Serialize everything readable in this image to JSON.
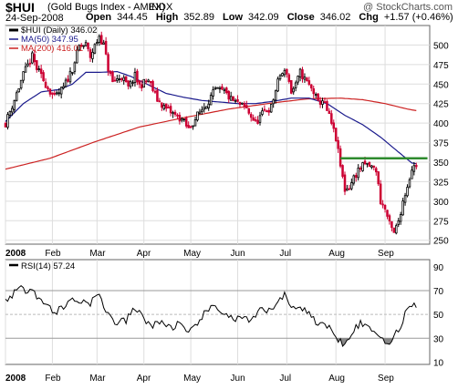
{
  "header": {
    "symbol": "$HUI",
    "name": "(Gold Bugs Index - AMEX)",
    "exchange": "INDX",
    "credit": "@ StockCharts.com",
    "date": "24-Sep-2008",
    "open_label": "Open",
    "open": "344.45",
    "high_label": "High",
    "high": "352.89",
    "low_label": "Low",
    "low": "342.09",
    "close_label": "Close",
    "close": "346.02",
    "chg_label": "Chg",
    "chg": "+1.57 (+0.46%)",
    "chg_color": "#000000"
  },
  "colors": {
    "up": "#000000",
    "down": "#cc0033",
    "ma50": "#1a1a8c",
    "ma200": "#cc2222",
    "resistance": "#2e8b2e",
    "rsi_line": "#000000",
    "rsi_fill_low": "#888888",
    "grid": "#dddddd",
    "frame": "#666666"
  },
  "chart_data": [
    {
      "type": "candlestick",
      "title": "$HUI (Gold Bugs Index - AMEX) INDX",
      "legend": [
        {
          "label": "$HUI (Daily) 346.02",
          "color": "#000000"
        },
        {
          "label": "MA(50) 347.95",
          "color": "#1a1a8c"
        },
        {
          "label": "MA(200) 416.01",
          "color": "#cc2222"
        }
      ],
      "legend_position": "top-left",
      "y_axis_side": "right",
      "ylim": [
        245,
        525
      ],
      "y_ticks": [
        250,
        275,
        300,
        325,
        350,
        375,
        400,
        425,
        450,
        475,
        500
      ],
      "x_tick_labels": [
        "2008",
        "Feb",
        "Mar",
        "Apr",
        "May",
        "Jun",
        "Jul",
        "Aug",
        "Sep"
      ],
      "x_tick_days": [
        0,
        21,
        41,
        62,
        83,
        104,
        126,
        148,
        170
      ],
      "total_days": 190,
      "price_anchors": [
        [
          0,
          400
        ],
        [
          4,
          430
        ],
        [
          8,
          462
        ],
        [
          12,
          485
        ],
        [
          14,
          470
        ],
        [
          18,
          450
        ],
        [
          22,
          432
        ],
        [
          26,
          445
        ],
        [
          30,
          470
        ],
        [
          33,
          498
        ],
        [
          36,
          500
        ],
        [
          38,
          485
        ],
        [
          42,
          512
        ],
        [
          44,
          500
        ],
        [
          46,
          470
        ],
        [
          48,
          452
        ],
        [
          52,
          460
        ],
        [
          55,
          445
        ],
        [
          58,
          460
        ],
        [
          60,
          448
        ],
        [
          64,
          455
        ],
        [
          68,
          430
        ],
        [
          72,
          418
        ],
        [
          76,
          410
        ],
        [
          79,
          405
        ],
        [
          82,
          392
        ],
        [
          86,
          410
        ],
        [
          90,
          425
        ],
        [
          94,
          442
        ],
        [
          98,
          440
        ],
        [
          101,
          430
        ],
        [
          104,
          425
        ],
        [
          108,
          418
        ],
        [
          112,
          400
        ],
        [
          116,
          415
        ],
        [
          119,
          420
        ],
        [
          121,
          442
        ],
        [
          123,
          462
        ],
        [
          126,
          466
        ],
        [
          128,
          440
        ],
        [
          130,
          448
        ],
        [
          132,
          465
        ],
        [
          135,
          452
        ],
        [
          138,
          440
        ],
        [
          140,
          425
        ],
        [
          142,
          430
        ],
        [
          145,
          408
        ],
        [
          148,
          380
        ],
        [
          150,
          345
        ],
        [
          152,
          315
        ],
        [
          154,
          318
        ],
        [
          156,
          330
        ],
        [
          158,
          340
        ],
        [
          161,
          347
        ],
        [
          163,
          345
        ],
        [
          166,
          340
        ],
        [
          168,
          300
        ],
        [
          170,
          290
        ],
        [
          172,
          270
        ],
        [
          174,
          258
        ],
        [
          176,
          275
        ],
        [
          178,
          300
        ],
        [
          180,
          320
        ],
        [
          182,
          342
        ],
        [
          184,
          346
        ]
      ],
      "ma50_anchors": [
        [
          0,
          402
        ],
        [
          8,
          425
        ],
        [
          16,
          440
        ],
        [
          24,
          443
        ],
        [
          30,
          450
        ],
        [
          36,
          465
        ],
        [
          42,
          465
        ],
        [
          50,
          466
        ],
        [
          56,
          460
        ],
        [
          64,
          449
        ],
        [
          72,
          438
        ],
        [
          80,
          433
        ],
        [
          88,
          429
        ],
        [
          96,
          427
        ],
        [
          104,
          425
        ],
        [
          112,
          425
        ],
        [
          120,
          428
        ],
        [
          128,
          432
        ],
        [
          136,
          432
        ],
        [
          144,
          425
        ],
        [
          152,
          410
        ],
        [
          160,
          398
        ],
        [
          168,
          382
        ],
        [
          176,
          363
        ],
        [
          182,
          349
        ],
        [
          184,
          348
        ]
      ],
      "ma200_anchors": [
        [
          0,
          341
        ],
        [
          20,
          355
        ],
        [
          40,
          376
        ],
        [
          60,
          395
        ],
        [
          80,
          407
        ],
        [
          100,
          418
        ],
        [
          120,
          426
        ],
        [
          135,
          431
        ],
        [
          150,
          432
        ],
        [
          160,
          430
        ],
        [
          170,
          425
        ],
        [
          180,
          418
        ],
        [
          184,
          416
        ]
      ],
      "resistance_level": 355,
      "resistance_days": [
        150,
        189
      ]
    },
    {
      "type": "line",
      "legend": [
        {
          "label": "RSI(14) 57.24",
          "color": "#000000"
        }
      ],
      "legend_position": "top-left",
      "ylim": [
        8,
        96
      ],
      "y_ticks": [
        10,
        30,
        50,
        70,
        90
      ],
      "ref_lines": [
        30,
        50,
        70
      ],
      "x_tick_labels": [
        "2008",
        "Feb",
        "Mar",
        "Apr",
        "May",
        "Jun",
        "Jul",
        "Aug",
        "Sep"
      ],
      "rsi_anchors": [
        [
          0,
          62
        ],
        [
          3,
          67
        ],
        [
          6,
          72
        ],
        [
          9,
          70
        ],
        [
          12,
          74
        ],
        [
          14,
          66
        ],
        [
          18,
          58
        ],
        [
          22,
          52
        ],
        [
          26,
          56
        ],
        [
          30,
          63
        ],
        [
          34,
          61
        ],
        [
          38,
          60
        ],
        [
          42,
          66
        ],
        [
          46,
          50
        ],
        [
          50,
          42
        ],
        [
          54,
          45
        ],
        [
          58,
          55
        ],
        [
          62,
          47
        ],
        [
          66,
          40
        ],
        [
          70,
          44
        ],
        [
          74,
          39
        ],
        [
          78,
          42
        ],
        [
          82,
          32
        ],
        [
          86,
          44
        ],
        [
          90,
          52
        ],
        [
          94,
          56
        ],
        [
          98,
          52
        ],
        [
          102,
          45
        ],
        [
          106,
          48
        ],
        [
          110,
          42
        ],
        [
          114,
          54
        ],
        [
          118,
          52
        ],
        [
          122,
          62
        ],
        [
          125,
          66
        ],
        [
          128,
          55
        ],
        [
          131,
          58
        ],
        [
          134,
          54
        ],
        [
          137,
          48
        ],
        [
          140,
          43
        ],
        [
          143,
          41
        ],
        [
          146,
          36
        ],
        [
          149,
          30
        ],
        [
          151,
          26
        ],
        [
          153,
          30
        ],
        [
          156,
          38
        ],
        [
          159,
          42
        ],
        [
          162,
          40
        ],
        [
          165,
          37
        ],
        [
          168,
          30
        ],
        [
          171,
          28
        ],
        [
          173,
          26
        ],
        [
          175,
          34
        ],
        [
          178,
          44
        ],
        [
          181,
          60
        ],
        [
          184,
          57
        ]
      ]
    }
  ]
}
